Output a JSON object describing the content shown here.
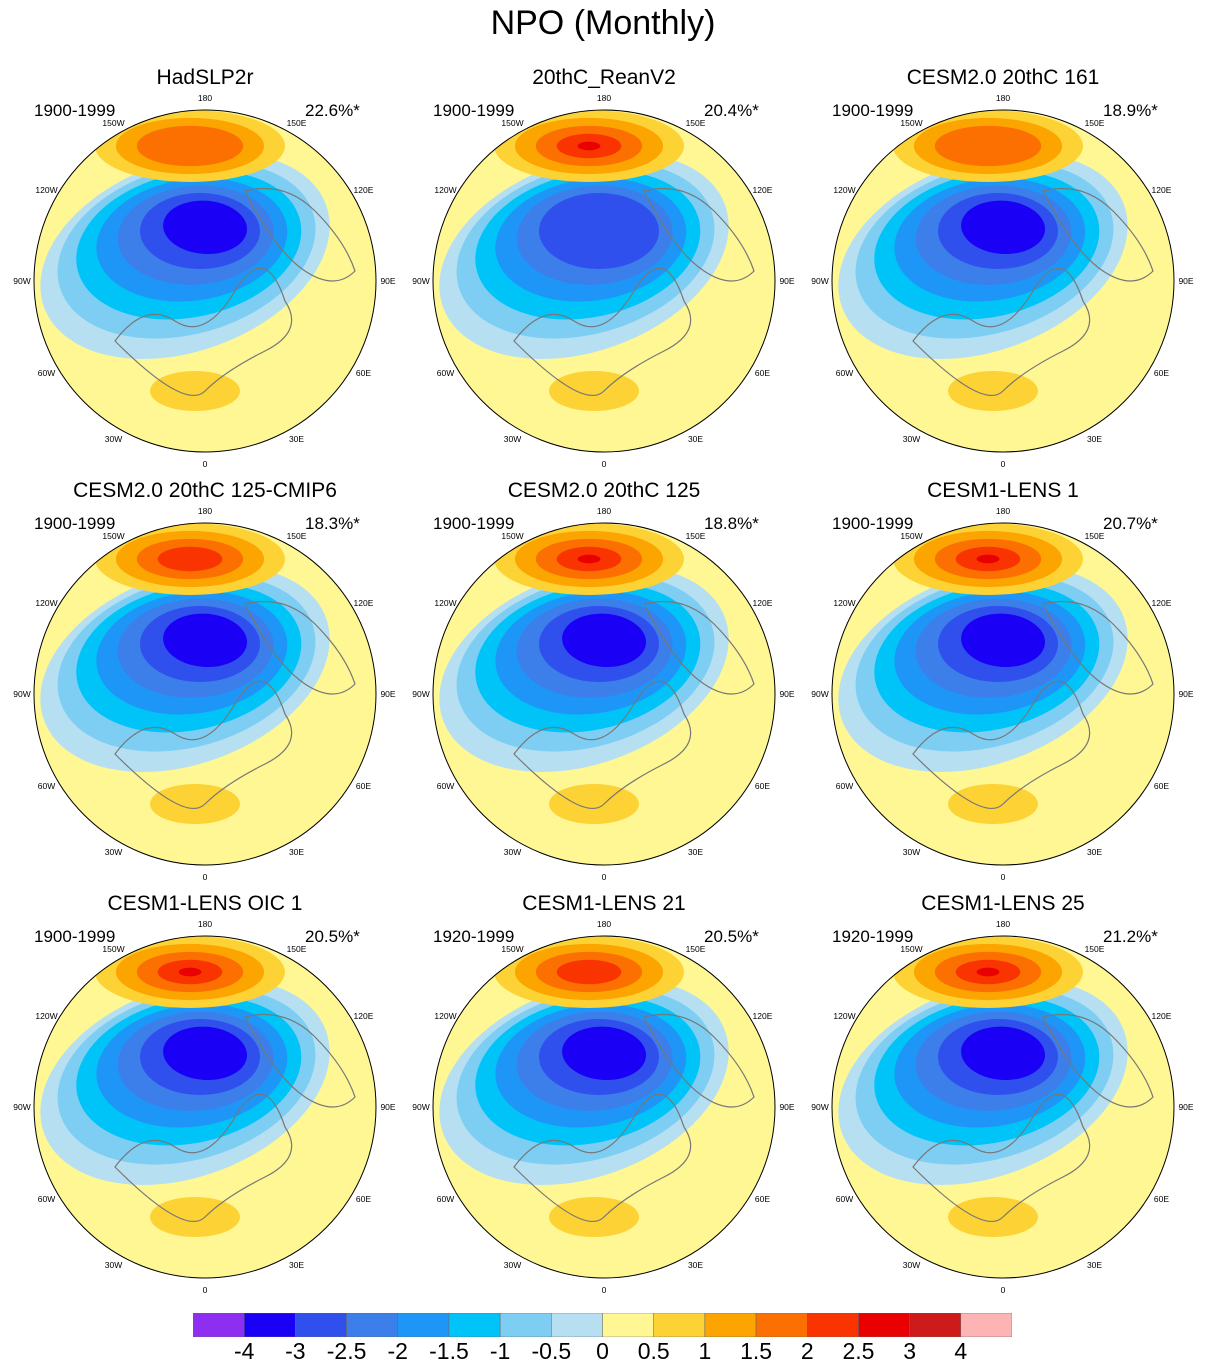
{
  "figure": {
    "title": "NPO (Monthly)"
  },
  "chart_data": {
    "type": "heatmap",
    "title": "NPO (Monthly)",
    "projection": "north-polar-stereographic",
    "longitude_labels": [
      "180",
      "150E",
      "120E",
      "90E",
      "60E",
      "30E",
      "0",
      "30W",
      "60W",
      "90W",
      "120W",
      "150W"
    ],
    "panels": [
      {
        "name": "HadSLP2r",
        "period": "1900-1999",
        "variance": "22.6%*",
        "pos_max": 1.5,
        "neg_min": -4
      },
      {
        "name": "20thC_ReanV2",
        "period": "1900-1999",
        "variance": "20.4%*",
        "pos_max": 2.5,
        "neg_min": -3
      },
      {
        "name": "CESM2.0 20thC 161",
        "period": "1900-1999",
        "variance": "18.9%*",
        "pos_max": 1.5,
        "neg_min": -4
      },
      {
        "name": "CESM2.0 20thC 125-CMIP6",
        "period": "1900-1999",
        "variance": "18.3%*",
        "pos_max": 2,
        "neg_min": -4
      },
      {
        "name": "CESM2.0 20thC 125",
        "period": "1900-1999",
        "variance": "18.8%*",
        "pos_max": 2.5,
        "neg_min": -4
      },
      {
        "name": "CESM1-LENS 1",
        "period": "1900-1999",
        "variance": "20.7%*",
        "pos_max": 2.5,
        "neg_min": -4
      },
      {
        "name": "CESM1-LENS OIC 1",
        "period": "1900-1999",
        "variance": "20.5%*",
        "pos_max": 2.5,
        "neg_min": -4
      },
      {
        "name": "CESM1-LENS 21",
        "period": "1920-1999",
        "variance": "20.5%*",
        "pos_max": 2,
        "neg_min": -4
      },
      {
        "name": "CESM1-LENS 25",
        "period": "1920-1999",
        "variance": "21.2%*",
        "pos_max": 2.5,
        "neg_min": -4
      }
    ],
    "colorbar": {
      "ticks": [
        "-4",
        "-3",
        "-2.5",
        "-2",
        "-1.5",
        "-1",
        "-0.5",
        "0",
        "0.5",
        "1",
        "1.5",
        "2",
        "2.5",
        "3",
        "4"
      ],
      "colors": [
        "#8e2ef0",
        "#1a00f5",
        "#3050ee",
        "#3c7eea",
        "#1e96f8",
        "#00c4f8",
        "#7ecef4",
        "#b6e0f2",
        "#fef794",
        "#fdd235",
        "#fca400",
        "#fb7000",
        "#f93400",
        "#e90000",
        "#cd1a1a",
        "#fdb4b4"
      ]
    }
  }
}
